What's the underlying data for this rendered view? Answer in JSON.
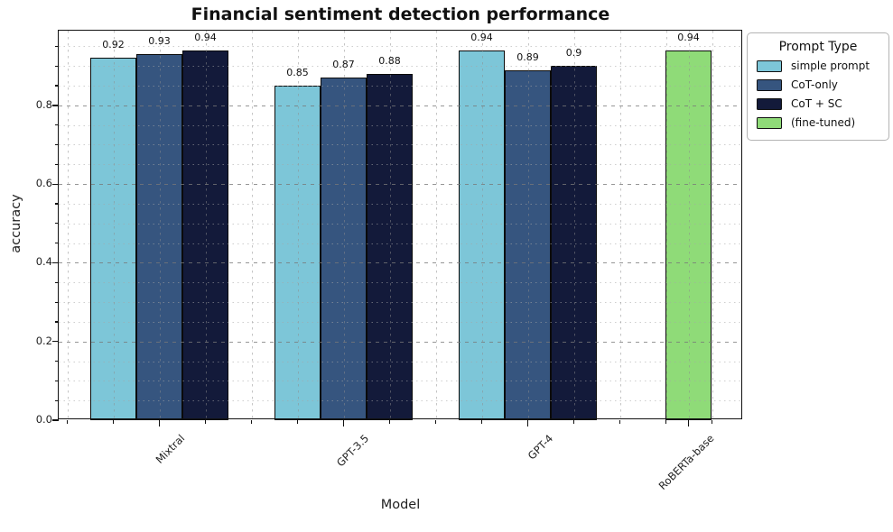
{
  "chart_data": {
    "type": "bar",
    "title": "Financial sentiment detection performance",
    "xlabel": "Model",
    "ylabel": "accuracy",
    "categories": [
      "Mixtral",
      "GPT-3.5",
      "GPT-4",
      "RoBERTa-base"
    ],
    "series": [
      {
        "name": "simple prompt",
        "color": "#7dc6d8",
        "values": [
          0.92,
          0.85,
          0.94,
          null
        ]
      },
      {
        "name": "CoT-only",
        "color": "#36557f",
        "values": [
          0.93,
          0.87,
          0.89,
          null
        ]
      },
      {
        "name": "CoT + SC",
        "color": "#131a3a",
        "values": [
          0.94,
          0.88,
          0.9,
          null
        ]
      },
      {
        "name": "(fine-tuned)",
        "color": "#8fdb78",
        "values": [
          null,
          null,
          null,
          0.94
        ]
      }
    ],
    "bar_value_labels": [
      "0.92",
      "0.93",
      "0.94",
      "0.85",
      "0.87",
      "0.88",
      "0.94",
      "0.89",
      "0.9",
      "0.94"
    ],
    "yticks": [
      0.0,
      0.2,
      0.4,
      0.6,
      0.8
    ],
    "ytick_labels": [
      "0.0",
      "0.2",
      "0.4",
      "0.6",
      "0.8"
    ],
    "ylim": [
      0.0,
      0.99
    ],
    "minor_tick_step_y": 0.05,
    "grid": true,
    "grid_style": "dashed, drawn over bars",
    "legend": {
      "title": "Prompt Type",
      "position": "upper right, outside plot"
    }
  }
}
